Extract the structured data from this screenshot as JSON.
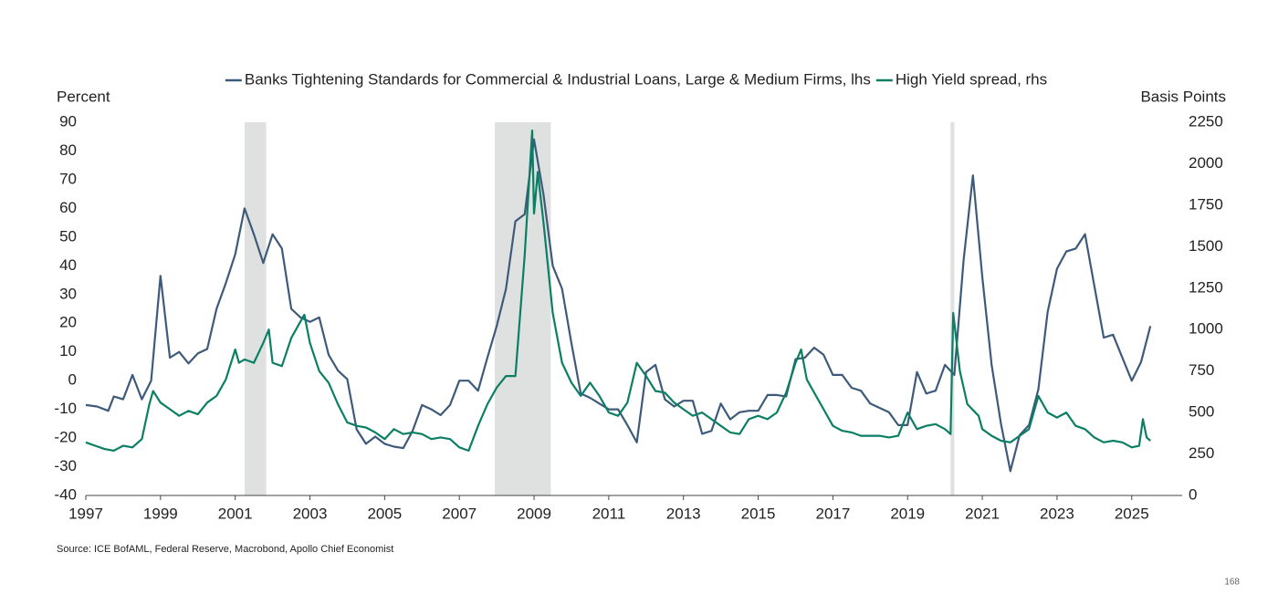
{
  "chart_data": {
    "type": "line",
    "y_label": "Percent",
    "y2_label": "Basis Points",
    "source": "Source: ICE BofAML, Federal Reserve, Macrobond, Apollo Chief Economist",
    "page_number": "168",
    "xlim": [
      1997,
      2026.35
    ],
    "xticks": [
      1997,
      1999,
      2001,
      2003,
      2005,
      2007,
      2009,
      2011,
      2013,
      2015,
      2017,
      2019,
      2021,
      2023,
      2025
    ],
    "ylim": [
      -40,
      90
    ],
    "yticks": [
      -40,
      -30,
      -20,
      -10,
      0,
      10,
      20,
      30,
      40,
      50,
      60,
      70,
      80,
      90
    ],
    "y2lim": [
      0,
      2250
    ],
    "y2ticks": [
      0,
      250,
      500,
      750,
      1000,
      1250,
      1500,
      1750,
      2000,
      2250
    ],
    "shaded_color": "#dfe1e0",
    "shaded_periods": [
      [
        2001.25,
        2001.83
      ],
      [
        2007.95,
        2009.45
      ],
      [
        2020.15,
        2020.25
      ]
    ],
    "series": [
      {
        "name": "Banks Tightening Standards for Commercial & Industrial Loans, Large & Medium Firms, lhs",
        "color": "#3d5a7a",
        "x": [
          1997.0,
          1997.3,
          1997.6,
          1997.75,
          1998.0,
          1998.25,
          1998.5,
          1998.75,
          1999.0,
          1999.25,
          1999.5,
          1999.75,
          2000.0,
          2000.25,
          2000.5,
          2000.75,
          2001.0,
          2001.25,
          2001.5,
          2001.75,
          2002.0,
          2002.25,
          2002.5,
          2002.75,
          2003.0,
          2003.25,
          2003.5,
          2003.75,
          2004.0,
          2004.25,
          2004.5,
          2004.75,
          2005.0,
          2005.25,
          2005.5,
          2005.75,
          2006.0,
          2006.25,
          2006.5,
          2006.75,
          2007.0,
          2007.25,
          2007.5,
          2007.75,
          2008.0,
          2008.25,
          2008.5,
          2008.75,
          2009.0,
          2009.25,
          2009.5,
          2009.75,
          2010.0,
          2010.25,
          2010.5,
          2010.75,
          2011.0,
          2011.25,
          2011.5,
          2011.75,
          2012.0,
          2012.25,
          2012.5,
          2012.75,
          2013.0,
          2013.25,
          2013.5,
          2013.75,
          2014.0,
          2014.25,
          2014.5,
          2014.75,
          2015.0,
          2015.25,
          2015.5,
          2015.75,
          2016.0,
          2016.25,
          2016.5,
          2016.75,
          2017.0,
          2017.25,
          2017.5,
          2017.75,
          2018.0,
          2018.25,
          2018.5,
          2018.75,
          2019.0,
          2019.25,
          2019.5,
          2019.75,
          2020.0,
          2020.25,
          2020.5,
          2020.75,
          2021.0,
          2021.25,
          2021.5,
          2021.75,
          2022.0,
          2022.25,
          2022.5,
          2022.75,
          2023.0,
          2023.25,
          2023.5,
          2023.75,
          2024.0,
          2024.25,
          2024.5,
          2024.75,
          2025.0,
          2025.25,
          2025.5
        ],
        "values": [
          -8.5,
          -9,
          -10.5,
          -5.5,
          -6.5,
          2,
          -6.5,
          0,
          36.5,
          8,
          10,
          6,
          9.5,
          11,
          25,
          34,
          44,
          60,
          51,
          41,
          51,
          46,
          25,
          22,
          20.5,
          22,
          9,
          3.5,
          0.5,
          -17,
          -22,
          -19.5,
          -22,
          -23,
          -23.5,
          -17.5,
          -8.5,
          -10,
          -12,
          -8.5,
          0,
          0,
          -3.5,
          8,
          19,
          32,
          55.5,
          58,
          84,
          65,
          40,
          32,
          13,
          -4.5,
          -6,
          -8,
          -10,
          -10,
          -15.5,
          -21.5,
          3,
          5.5,
          -6.5,
          -9,
          -7,
          -7,
          -18.5,
          -17.5,
          -8,
          -13.5,
          -11,
          -10.5,
          -10.5,
          -5,
          -5,
          -5.5,
          7.5,
          8,
          11.5,
          9,
          2,
          2,
          -2.5,
          -3.5,
          -8,
          -9.5,
          -11,
          -15.5,
          -15.5,
          3,
          -4.5,
          -3.5,
          5.5,
          2,
          42,
          71.5,
          36,
          5.5,
          -15,
          -31.5,
          -19,
          -15.5,
          -3,
          24,
          39,
          45,
          46,
          51,
          33,
          15,
          16,
          8,
          0,
          6.5,
          19
        ]
      },
      {
        "name": "High Yield spread, rhs",
        "color": "#0b7f63",
        "axis": "y2",
        "x": [
          1997.0,
          1997.25,
          1997.5,
          1997.75,
          1998.0,
          1998.25,
          1998.5,
          1998.7,
          1998.8,
          1999.0,
          1999.25,
          1999.5,
          1999.75,
          2000.0,
          2000.25,
          2000.5,
          2000.75,
          2001.0,
          2001.1,
          2001.25,
          2001.5,
          2001.75,
          2001.9,
          2002.0,
          2002.25,
          2002.5,
          2002.75,
          2002.85,
          2003.0,
          2003.25,
          2003.5,
          2003.75,
          2004.0,
          2004.25,
          2004.5,
          2004.75,
          2005.0,
          2005.25,
          2005.5,
          2005.75,
          2006.0,
          2006.25,
          2006.5,
          2006.75,
          2007.0,
          2007.25,
          2007.5,
          2007.75,
          2008.0,
          2008.25,
          2008.5,
          2008.75,
          2008.95,
          2009.0,
          2009.1,
          2009.25,
          2009.5,
          2009.75,
          2010.0,
          2010.25,
          2010.5,
          2010.75,
          2011.0,
          2011.25,
          2011.5,
          2011.75,
          2012.0,
          2012.25,
          2012.5,
          2012.75,
          2013.0,
          2013.25,
          2013.5,
          2013.75,
          2014.0,
          2014.25,
          2014.5,
          2014.75,
          2015.0,
          2015.25,
          2015.5,
          2015.75,
          2016.0,
          2016.15,
          2016.3,
          2016.5,
          2016.75,
          2017.0,
          2017.25,
          2017.5,
          2017.75,
          2018.0,
          2018.25,
          2018.5,
          2018.75,
          2019.0,
          2019.25,
          2019.5,
          2019.75,
          2020.0,
          2020.15,
          2020.22,
          2020.4,
          2020.6,
          2020.9,
          2021.0,
          2021.25,
          2021.5,
          2021.75,
          2022.0,
          2022.25,
          2022.5,
          2022.75,
          2023.0,
          2023.25,
          2023.5,
          2023.75,
          2024.0,
          2024.25,
          2024.5,
          2024.75,
          2025.0,
          2025.2,
          2025.3,
          2025.4,
          2025.5
        ],
        "values": [
          320,
          300,
          280,
          270,
          300,
          290,
          340,
          550,
          630,
          560,
          520,
          480,
          510,
          490,
          560,
          600,
          700,
          880,
          800,
          820,
          800,
          920,
          1000,
          800,
          780,
          950,
          1050,
          1090,
          920,
          750,
          680,
          550,
          440,
          420,
          410,
          380,
          340,
          400,
          370,
          380,
          370,
          340,
          350,
          340,
          290,
          270,
          420,
          550,
          650,
          720,
          720,
          1450,
          2200,
          1700,
          1950,
          1650,
          1100,
          800,
          680,
          600,
          680,
          600,
          500,
          480,
          560,
          800,
          720,
          630,
          620,
          560,
          520,
          480,
          500,
          460,
          420,
          380,
          370,
          460,
          480,
          460,
          500,
          620,
          800,
          880,
          700,
          620,
          520,
          420,
          390,
          380,
          360,
          360,
          360,
          350,
          360,
          500,
          400,
          420,
          430,
          400,
          370,
          1100,
          750,
          550,
          480,
          400,
          360,
          330,
          320,
          360,
          400,
          600,
          500,
          470,
          500,
          420,
          400,
          350,
          320,
          330,
          320,
          290,
          300,
          460,
          350,
          330
        ]
      }
    ]
  }
}
